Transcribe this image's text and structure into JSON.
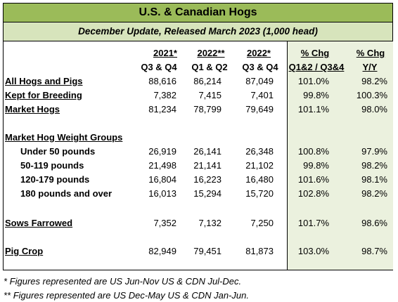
{
  "title": "U.S. & Canadian Hogs",
  "subtitle": "December Update, Released March 2023 (1,000 head)",
  "headers": {
    "col_2021": "2021*",
    "col_2022a": "2022**",
    "col_2022b": "2022*",
    "col_chg1": "% Chg",
    "col_chg2": "% Chg",
    "sub_2021": "Q3 & Q4",
    "sub_2022a": "Q1 & Q2",
    "sub_2022b": "Q3 & Q4",
    "sub_chg1": "Q1&2 / Q3&4",
    "sub_chg2": "Y/Y"
  },
  "rows": [
    {
      "label": "All Hogs and Pigs",
      "v2021": "88,616",
      "v2022a": "86,214",
      "v2022b": "87,049",
      "chg1": "101.0%",
      "chg2": "98.2%"
    },
    {
      "label": "Kept for Breeding",
      "v2021": "7,382",
      "v2022a": "7,415",
      "v2022b": "7,401",
      "chg1": "99.8%",
      "chg2": "100.3%"
    },
    {
      "label": "Market Hogs",
      "v2021": "81,234",
      "v2022a": "78,799",
      "v2022b": "79,649",
      "chg1": "101.1%",
      "chg2": "98.0%"
    },
    {
      "label": "Market Hog Weight Groups"
    },
    {
      "label": "Under 50 pounds",
      "v2021": "26,919",
      "v2022a": "26,141",
      "v2022b": "26,348",
      "chg1": "100.8%",
      "chg2": "97.9%"
    },
    {
      "label": "50-119 pounds",
      "v2021": "21,498",
      "v2022a": "21,141",
      "v2022b": "21,102",
      "chg1": "99.8%",
      "chg2": "98.2%"
    },
    {
      "label": "120-179 pounds",
      "v2021": "16,804",
      "v2022a": "16,223",
      "v2022b": "16,480",
      "chg1": "101.6%",
      "chg2": "98.1%"
    },
    {
      "label": "180 pounds and over",
      "v2021": "16,013",
      "v2022a": "15,294",
      "v2022b": "15,720",
      "chg1": "102.8%",
      "chg2": "98.2%"
    },
    {
      "label": "Sows Farrowed",
      "v2021": "7,352",
      "v2022a": "7,132",
      "v2022b": "7,250",
      "chg1": "101.7%",
      "chg2": "98.6%"
    },
    {
      "label": "Pig Crop",
      "v2021": "82,949",
      "v2022a": "79,451",
      "v2022b": "81,873",
      "chg1": "103.0%",
      "chg2": "98.7%"
    }
  ],
  "footnotes": {
    "single": "* Figures represented are US Jun-Nov US & CDN Jul-Dec.",
    "double": "** Figures represented are US Dec-May US & CDN Jan-Jun."
  }
}
